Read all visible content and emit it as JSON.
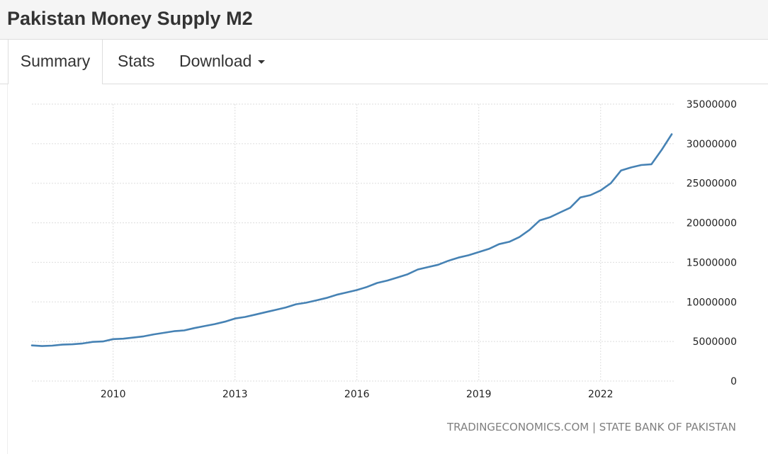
{
  "header": {
    "title": "Pakistan Money Supply M2"
  },
  "tabs": [
    {
      "label": "Summary",
      "active": true
    },
    {
      "label": "Stats",
      "active": false
    },
    {
      "label": "Download",
      "active": false
    }
  ],
  "colors": {
    "line": "#4682b4",
    "grid": "#dddddd",
    "header_bg": "#f5f5f5"
  },
  "source_text": "TRADINGECONOMICS.COM | STATE BANK OF PAKISTAN",
  "chart_data": {
    "type": "line",
    "title": "",
    "xlabel": "",
    "ylabel": "",
    "x_ticks": [
      "2010",
      "2013",
      "2016",
      "2019",
      "2022"
    ],
    "y_ticks": [
      "35000000",
      "30000000",
      "25000000",
      "20000000",
      "15000000",
      "10000000",
      "5000000",
      "0"
    ],
    "ylim": [
      0,
      35000000
    ],
    "xlim": [
      2008.0,
      2023.8
    ],
    "grid": true,
    "legend": "none",
    "series": [
      {
        "x": [
          2008.0,
          2008.25,
          2008.5,
          2008.75,
          2009.0,
          2009.25,
          2009.5,
          2009.75,
          2010.0,
          2010.25,
          2010.5,
          2010.75,
          2011.0,
          2011.25,
          2011.5,
          2011.75,
          2012.0,
          2012.25,
          2012.5,
          2012.75,
          2013.0,
          2013.25,
          2013.5,
          2013.75,
          2014.0,
          2014.25,
          2014.5,
          2014.75,
          2015.0,
          2015.25,
          2015.5,
          2015.75,
          2016.0,
          2016.25,
          2016.5,
          2016.75,
          2017.0,
          2017.25,
          2017.5,
          2017.75,
          2018.0,
          2018.25,
          2018.5,
          2018.75,
          2019.0,
          2019.25,
          2019.5,
          2019.75,
          2020.0,
          2020.25,
          2020.5,
          2020.75,
          2021.0,
          2021.25,
          2021.5,
          2021.75,
          2022.0,
          2022.25,
          2022.5,
          2022.75,
          2023.0,
          2023.25,
          2023.5,
          2023.75
        ],
        "values": [
          4500000,
          4420000,
          4480000,
          4600000,
          4650000,
          4750000,
          4950000,
          5000000,
          5300000,
          5350000,
          5500000,
          5650000,
          5900000,
          6100000,
          6300000,
          6400000,
          6700000,
          6950000,
          7200000,
          7500000,
          7900000,
          8100000,
          8400000,
          8700000,
          9000000,
          9300000,
          9700000,
          9900000,
          10200000,
          10500000,
          10900000,
          11200000,
          11500000,
          11900000,
          12400000,
          12700000,
          13100000,
          13500000,
          14100000,
          14400000,
          14700000,
          15200000,
          15600000,
          15900000,
          16300000,
          16700000,
          17300000,
          17600000,
          18200000,
          19100000,
          20300000,
          20700000,
          21300000,
          21900000,
          23200000,
          23500000,
          24100000,
          25000000,
          26600000,
          27000000,
          27300000,
          27400000,
          29200000,
          31200000
        ]
      }
    ]
  }
}
